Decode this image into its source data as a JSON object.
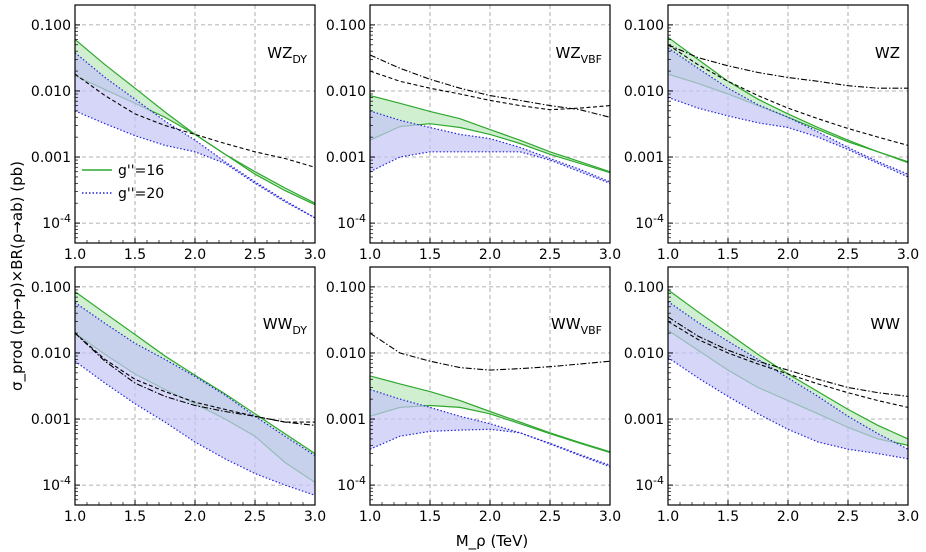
{
  "figure": {
    "ylabel": "σ_prod (pp→ρ)×BR(ρ→ab)  (pb)",
    "xlabel": "M_ρ  (TeV)",
    "colors": {
      "green_line": "#2ea82e",
      "green_fill": "#c8ecc8",
      "blue_line": "#2525dd",
      "blue_fill": "#c4c4f6",
      "background_line": "#000000",
      "grid": "#9a9a9a"
    }
  },
  "legend": {
    "items": [
      {
        "label": "g''=16",
        "style": "solid",
        "color": "#2ea82e"
      },
      {
        "label": "g''=20",
        "style": "dotted",
        "color": "#2525dd"
      }
    ]
  },
  "chart_data": [
    {
      "type": "area",
      "title": "WZ_DY",
      "label_main": "WZ",
      "label_sub": "DY",
      "xlim": [
        1.0,
        3.0
      ],
      "ylim": [
        5e-05,
        0.2
      ],
      "yscale": "log",
      "grid": true,
      "xticks": [
        "1.0",
        "1.5",
        "2.0",
        "2.5",
        "3.0"
      ],
      "yticks": [
        "0.100",
        "0.010",
        "0.001",
        "10^-4"
      ],
      "x": [
        1.0,
        1.25,
        1.5,
        1.75,
        2.0,
        2.25,
        2.5,
        2.75,
        3.0
      ],
      "series": [
        {
          "name": "g''=16",
          "color": "#2ea82e",
          "upper": [
            0.06,
            0.025,
            0.011,
            0.0048,
            0.0022,
            0.0011,
            0.0006,
            0.00034,
            0.0002
          ],
          "lower": [
            0.017,
            0.0105,
            0.0065,
            0.004,
            0.0022,
            0.0011,
            0.00055,
            0.00031,
            0.00019
          ]
        },
        {
          "name": "g''=20",
          "color": "#2525dd",
          "upper": [
            0.038,
            0.016,
            0.0075,
            0.0035,
            0.0018,
            0.00085,
            0.00042,
            0.00022,
            0.00012
          ],
          "lower": [
            0.005,
            0.0032,
            0.0021,
            0.0015,
            0.0012,
            0.0008,
            0.0004,
            0.00021,
            0.00012
          ]
        }
      ],
      "background": [
        {
          "style": "dashed",
          "values": [
            0.018,
            0.0085,
            0.0045,
            0.003,
            0.0022,
            0.0016,
            0.0012,
            0.00095,
            0.0007
          ]
        }
      ]
    },
    {
      "type": "area",
      "title": "WZ_VBF",
      "label_main": "WZ",
      "label_sub": "VBF",
      "xlim": [
        1.0,
        3.0
      ],
      "ylim": [
        5e-05,
        0.2
      ],
      "yscale": "log",
      "grid": true,
      "xticks": [
        "1.0",
        "1.5",
        "2.0",
        "2.5",
        "3.0"
      ],
      "yticks": [
        "0.100",
        "0.010",
        "0.001",
        "10^-4"
      ],
      "x": [
        1.0,
        1.25,
        1.5,
        1.75,
        2.0,
        2.25,
        2.5,
        2.75,
        3.0
      ],
      "series": [
        {
          "name": "g''=16",
          "color": "#2ea82e",
          "upper": [
            0.0085,
            0.0065,
            0.0049,
            0.0038,
            0.0026,
            0.0018,
            0.0012,
            0.00085,
            0.0006
          ],
          "lower": [
            0.0018,
            0.0029,
            0.0032,
            0.0028,
            0.0022,
            0.0016,
            0.0011,
            0.0008,
            0.00058
          ]
        },
        {
          "name": "g''=20",
          "color": "#2525dd",
          "upper": [
            0.005,
            0.0036,
            0.0028,
            0.0022,
            0.0019,
            0.0014,
            0.00095,
            0.00065,
            0.00042
          ],
          "lower": [
            0.0006,
            0.001,
            0.0012,
            0.0012,
            0.0012,
            0.0012,
            0.0009,
            0.0006,
            0.0004
          ]
        }
      ],
      "background": [
        {
          "style": "dashdot",
          "values": [
            0.035,
            0.022,
            0.015,
            0.011,
            0.0085,
            0.0072,
            0.006,
            0.0052,
            0.004
          ]
        },
        {
          "style": "dashed",
          "values": [
            0.02,
            0.014,
            0.011,
            0.009,
            0.0072,
            0.006,
            0.0052,
            0.0055,
            0.006
          ]
        }
      ]
    },
    {
      "type": "area",
      "title": "WZ",
      "label_main": "WZ",
      "label_sub": "",
      "xlim": [
        1.0,
        3.0
      ],
      "ylim": [
        5e-05,
        0.2
      ],
      "yscale": "log",
      "grid": true,
      "xticks": [
        "1.0",
        "1.5",
        "2.0",
        "2.5",
        "3.0"
      ],
      "yticks": [
        "0.100",
        "0.010",
        "0.001",
        "10^-4"
      ],
      "x": [
        1.0,
        1.25,
        1.5,
        1.75,
        2.0,
        2.25,
        2.5,
        2.75,
        3.0
      ],
      "series": [
        {
          "name": "g''=16",
          "color": "#2ea82e",
          "upper": [
            0.065,
            0.03,
            0.014,
            0.0075,
            0.0045,
            0.0028,
            0.0018,
            0.0012,
            0.00085
          ],
          "lower": [
            0.018,
            0.013,
            0.009,
            0.006,
            0.004,
            0.0026,
            0.0017,
            0.0012,
            0.00082
          ]
        },
        {
          "name": "g''=20",
          "color": "#2525dd",
          "upper": [
            0.045,
            0.022,
            0.011,
            0.0062,
            0.004,
            0.0024,
            0.0014,
            0.00085,
            0.00055
          ],
          "lower": [
            0.008,
            0.0055,
            0.0042,
            0.0033,
            0.0028,
            0.002,
            0.0013,
            0.0008,
            0.0005
          ]
        }
      ],
      "background": [
        {
          "style": "dashdot",
          "values": [
            0.05,
            0.032,
            0.024,
            0.019,
            0.016,
            0.014,
            0.012,
            0.011,
            0.011
          ]
        },
        {
          "style": "dashed",
          "values": [
            0.05,
            0.025,
            0.014,
            0.0085,
            0.0055,
            0.0038,
            0.0027,
            0.002,
            0.0015
          ]
        }
      ]
    },
    {
      "type": "area",
      "title": "WW_DY",
      "label_main": "WW",
      "label_sub": "DY",
      "xlim": [
        1.0,
        3.0
      ],
      "ylim": [
        5e-05,
        0.2
      ],
      "yscale": "log",
      "grid": true,
      "xticks": [
        "1.0",
        "1.5",
        "2.0",
        "2.5",
        "3.0"
      ],
      "yticks": [
        "0.100",
        "0.010",
        "0.001",
        "10^-4"
      ],
      "x": [
        1.0,
        1.25,
        1.5,
        1.75,
        2.0,
        2.25,
        2.5,
        2.75,
        3.0
      ],
      "series": [
        {
          "name": "g''=16",
          "color": "#2ea82e",
          "upper": [
            0.085,
            0.04,
            0.019,
            0.009,
            0.0046,
            0.0024,
            0.0012,
            0.0006,
            0.0003
          ],
          "lower": [
            0.02,
            0.0095,
            0.0048,
            0.0028,
            0.0017,
            0.001,
            0.00055,
            0.00022,
            0.00011
          ]
        },
        {
          "name": "g''=20",
          "color": "#2525dd",
          "upper": [
            0.058,
            0.028,
            0.014,
            0.008,
            0.0044,
            0.0023,
            0.0011,
            0.00055,
            0.00028
          ],
          "lower": [
            0.0075,
            0.0035,
            0.0017,
            0.0009,
            0.00045,
            0.00025,
            0.00015,
            0.0001,
            7e-05
          ]
        }
      ],
      "background": [
        {
          "style": "dashdot",
          "values": [
            0.02,
            0.0075,
            0.0035,
            0.0022,
            0.0016,
            0.0013,
            0.0011,
            0.0009,
            0.0008
          ]
        },
        {
          "style": "dashed",
          "values": [
            0.02,
            0.008,
            0.004,
            0.0026,
            0.0018,
            0.0014,
            0.0011,
            0.0009,
            0.0009
          ]
        }
      ]
    },
    {
      "type": "area",
      "title": "WW_VBF",
      "label_main": "WW",
      "label_sub": "VBF",
      "xlim": [
        1.0,
        3.0
      ],
      "ylim": [
        5e-05,
        0.2
      ],
      "yscale": "log",
      "grid": true,
      "xticks": [
        "1.0",
        "1.5",
        "2.0",
        "2.5",
        "3.0"
      ],
      "yticks": [
        "0.100",
        "0.010",
        "0.001",
        "10^-4"
      ],
      "x": [
        1.0,
        1.25,
        1.5,
        1.75,
        2.0,
        2.25,
        2.5,
        2.75,
        3.0
      ],
      "series": [
        {
          "name": "g''=16",
          "color": "#2ea82e",
          "upper": [
            0.0045,
            0.0034,
            0.0026,
            0.0019,
            0.0013,
            0.0009,
            0.00062,
            0.00044,
            0.00032
          ],
          "lower": [
            0.0011,
            0.0015,
            0.0016,
            0.0015,
            0.0012,
            0.00085,
            0.0006,
            0.00043,
            0.00031
          ]
        },
        {
          "name": "g''=20",
          "color": "#2525dd",
          "upper": [
            0.0028,
            0.002,
            0.0015,
            0.0011,
            0.00085,
            0.00062,
            0.00043,
            0.00029,
            0.0002
          ],
          "lower": [
            0.00035,
            0.00055,
            0.00065,
            0.00068,
            0.0007,
            0.00062,
            0.00042,
            0.00028,
            0.00019
          ]
        }
      ],
      "background": [
        {
          "style": "dashdot",
          "values": [
            0.02,
            0.01,
            0.0075,
            0.006,
            0.0055,
            0.0058,
            0.0062,
            0.0068,
            0.0075
          ]
        }
      ]
    },
    {
      "type": "area",
      "title": "WW",
      "label_main": "WW",
      "label_sub": "",
      "xlim": [
        1.0,
        3.0
      ],
      "ylim": [
        5e-05,
        0.2
      ],
      "yscale": "log",
      "grid": true,
      "xticks": [
        "1.0",
        "1.5",
        "2.0",
        "2.5",
        "3.0"
      ],
      "yticks": [
        "0.100",
        "0.010",
        "0.001",
        "10^-4"
      ],
      "x": [
        1.0,
        1.25,
        1.5,
        1.75,
        2.0,
        2.25,
        2.5,
        2.75,
        3.0
      ],
      "series": [
        {
          "name": "g''=16",
          "color": "#2ea82e",
          "upper": [
            0.09,
            0.042,
            0.02,
            0.0095,
            0.0048,
            0.0026,
            0.0014,
            0.0008,
            0.0005
          ],
          "lower": [
            0.022,
            0.011,
            0.0055,
            0.003,
            0.0019,
            0.0012,
            0.00075,
            0.0005,
            0.0004
          ]
        },
        {
          "name": "g''=20",
          "color": "#2525dd",
          "upper": [
            0.06,
            0.029,
            0.015,
            0.008,
            0.0042,
            0.0022,
            0.0011,
            0.0006,
            0.00035
          ],
          "lower": [
            0.0085,
            0.0042,
            0.0022,
            0.0012,
            0.0007,
            0.00045,
            0.00035,
            0.0003,
            0.00025
          ]
        }
      ],
      "background": [
        {
          "style": "dashdot",
          "values": [
            0.035,
            0.018,
            0.011,
            0.0075,
            0.0055,
            0.004,
            0.003,
            0.0025,
            0.0022
          ]
        },
        {
          "style": "dashed",
          "values": [
            0.03,
            0.016,
            0.01,
            0.0068,
            0.0048,
            0.0034,
            0.0025,
            0.0019,
            0.0015
          ]
        }
      ]
    }
  ]
}
